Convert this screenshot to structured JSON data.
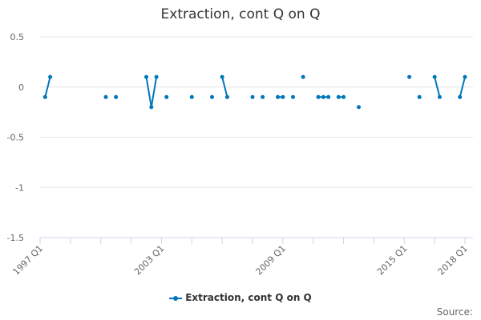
{
  "chart_data": {
    "type": "line",
    "title": "Extraction, cont Q on Q",
    "series": [
      {
        "name": "Extraction, cont Q on Q",
        "color": "#0077bb",
        "points": [
          {
            "x": "1997 Q2",
            "y": -0.1
          },
          {
            "x": "1997 Q3",
            "y": 0.1
          },
          {
            "x": "2000 Q2",
            "y": -0.1
          },
          {
            "x": "2000 Q4",
            "y": -0.1
          },
          {
            "x": "2002 Q2",
            "y": 0.1
          },
          {
            "x": "2002 Q3",
            "y": -0.2
          },
          {
            "x": "2002 Q4",
            "y": 0.1
          },
          {
            "x": "2003 Q2",
            "y": -0.1
          },
          {
            "x": "2004 Q3",
            "y": -0.1
          },
          {
            "x": "2005 Q3",
            "y": -0.1
          },
          {
            "x": "2006 Q1",
            "y": 0.1
          },
          {
            "x": "2006 Q2",
            "y": -0.1
          },
          {
            "x": "2007 Q3",
            "y": -0.1
          },
          {
            "x": "2008 Q1",
            "y": -0.1
          },
          {
            "x": "2008 Q4",
            "y": -0.1
          },
          {
            "x": "2009 Q1",
            "y": -0.1
          },
          {
            "x": "2009 Q3",
            "y": -0.1
          },
          {
            "x": "2010 Q1",
            "y": 0.1
          },
          {
            "x": "2010 Q4",
            "y": -0.1
          },
          {
            "x": "2011 Q1",
            "y": -0.1
          },
          {
            "x": "2011 Q2",
            "y": -0.1
          },
          {
            "x": "2011 Q4",
            "y": -0.1
          },
          {
            "x": "2012 Q1",
            "y": -0.1
          },
          {
            "x": "2012 Q4",
            "y": -0.2
          },
          {
            "x": "2015 Q2",
            "y": 0.1
          },
          {
            "x": "2015 Q4",
            "y": -0.1
          },
          {
            "x": "2016 Q3",
            "y": 0.1
          },
          {
            "x": "2016 Q4",
            "y": -0.1
          },
          {
            "x": "2017 Q4",
            "y": -0.1
          },
          {
            "x": "2018 Q1",
            "y": 0.1
          }
        ]
      }
    ],
    "x_range": [
      "1997 Q1",
      "2018 Q1"
    ],
    "x_tick_labels": [
      "1997 Q1",
      "2003 Q1",
      "2009 Q1",
      "2015 Q1",
      "2018 Q1"
    ],
    "y_ticks": [
      0.5,
      0,
      -0.5,
      -1,
      -1.5
    ],
    "y_tick_labels": [
      "0.5",
      "0",
      "-0.5",
      "-1",
      "-1.5"
    ],
    "ylim": [
      -1.5,
      0.5
    ],
    "grid": true,
    "legend": "bottom"
  },
  "source_label": "Source:"
}
